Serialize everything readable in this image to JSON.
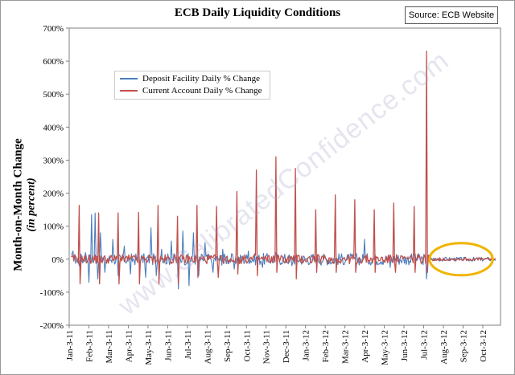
{
  "chart_data": {
    "type": "line",
    "title": "ECB Daily Liquidity Conditions",
    "source_box": "Source: ECB Website",
    "ylabel_main": "Month-on-Month Change",
    "ylabel_sub": "(in percent)",
    "xlabel": "",
    "ylim": [
      -200,
      700
    ],
    "y_ticks": [
      -200,
      -100,
      0,
      100,
      200,
      300,
      400,
      500,
      600,
      700
    ],
    "y_tick_labels": [
      "-200%",
      "-100%",
      "0%",
      "100%",
      "200%",
      "300%",
      "400%",
      "500%",
      "600%",
      "700%"
    ],
    "x_ticks": [
      "Jan-3-11",
      "Feb-3-11",
      "Mar-3-11",
      "Apr-3-11",
      "May-3-11",
      "Jun-3-11",
      "Jul-3-11",
      "Aug-3-11",
      "Sep-3-11",
      "Oct-3-11",
      "Nov-3-11",
      "Dec-3-11",
      "Jan-3-12",
      "Feb-3-12",
      "Mar-3-12",
      "Apr-3-12",
      "May-3-12",
      "Jun-3-12",
      "Jul-3-12",
      "Aug-3-12",
      "Sep-3-12",
      "Oct-3-12"
    ],
    "grid": false,
    "legend_position": "top-left",
    "watermark": "www.CalibratedConfidence.com",
    "series": [
      {
        "name": "Deposit Facility Daily % Change",
        "color": "#4a7ebb",
        "spikes": [
          {
            "x": 0.2,
            "y": 25
          },
          {
            "x": 0.5,
            "y": -20
          },
          {
            "x": 0.8,
            "y": 20
          },
          {
            "x": 1.0,
            "y": -70
          },
          {
            "x": 1.15,
            "y": 135
          },
          {
            "x": 1.3,
            "y": 140
          },
          {
            "x": 1.45,
            "y": -60
          },
          {
            "x": 1.6,
            "y": 80
          },
          {
            "x": 1.8,
            "y": -40
          },
          {
            "x": 2.2,
            "y": 60
          },
          {
            "x": 2.5,
            "y": -50
          },
          {
            "x": 2.8,
            "y": 40
          },
          {
            "x": 3.1,
            "y": -45
          },
          {
            "x": 3.5,
            "y": 45
          },
          {
            "x": 3.9,
            "y": -55
          },
          {
            "x": 4.15,
            "y": 95
          },
          {
            "x": 4.4,
            "y": -50
          },
          {
            "x": 4.7,
            "y": 30
          },
          {
            "x": 5.2,
            "y": 55
          },
          {
            "x": 5.55,
            "y": -90
          },
          {
            "x": 5.75,
            "y": 85
          },
          {
            "x": 6.1,
            "y": -80
          },
          {
            "x": 6.3,
            "y": 80
          },
          {
            "x": 6.6,
            "y": -50
          },
          {
            "x": 6.9,
            "y": 50
          },
          {
            "x": 7.3,
            "y": -40
          },
          {
            "x": 7.8,
            "y": 30
          },
          {
            "x": 8.4,
            "y": -30
          },
          {
            "x": 9.1,
            "y": 25
          },
          {
            "x": 9.8,
            "y": -25
          },
          {
            "x": 10.5,
            "y": 20
          },
          {
            "x": 11.3,
            "y": -20
          },
          {
            "x": 12.4,
            "y": 15
          },
          {
            "x": 13.3,
            "y": -15
          },
          {
            "x": 14.2,
            "y": 10
          },
          {
            "x": 15.0,
            "y": 60
          },
          {
            "x": 16.3,
            "y": -25
          },
          {
            "x": 17.5,
            "y": 15
          },
          {
            "x": 18.15,
            "y": -60
          },
          {
            "x": 19.3,
            "y": 5
          },
          {
            "x": 20.5,
            "y": -5
          }
        ]
      },
      {
        "name": "Current Account Daily % Change",
        "color": "#c0504d",
        "spikes": [
          {
            "x": 0.5,
            "y": 163
          },
          {
            "x": 0.55,
            "y": -75
          },
          {
            "x": 1.5,
            "y": 140
          },
          {
            "x": 1.55,
            "y": -75
          },
          {
            "x": 2.5,
            "y": 140
          },
          {
            "x": 2.55,
            "y": -75
          },
          {
            "x": 3.5,
            "y": 142
          },
          {
            "x": 3.55,
            "y": -75
          },
          {
            "x": 4.5,
            "y": 163
          },
          {
            "x": 4.55,
            "y": -75
          },
          {
            "x": 5.5,
            "y": 130
          },
          {
            "x": 5.55,
            "y": -75
          },
          {
            "x": 6.5,
            "y": 163
          },
          {
            "x": 6.55,
            "y": -55
          },
          {
            "x": 7.5,
            "y": 160
          },
          {
            "x": 7.55,
            "y": -55
          },
          {
            "x": 8.5,
            "y": 205
          },
          {
            "x": 8.55,
            "y": -45
          },
          {
            "x": 9.5,
            "y": 270
          },
          {
            "x": 9.55,
            "y": -50
          },
          {
            "x": 10.5,
            "y": 310
          },
          {
            "x": 10.55,
            "y": -40
          },
          {
            "x": 11.5,
            "y": 275
          },
          {
            "x": 11.55,
            "y": -60
          },
          {
            "x": 12.5,
            "y": 150
          },
          {
            "x": 12.55,
            "y": -40
          },
          {
            "x": 13.5,
            "y": 195
          },
          {
            "x": 13.55,
            "y": -40
          },
          {
            "x": 14.5,
            "y": 180
          },
          {
            "x": 14.55,
            "y": -40
          },
          {
            "x": 15.5,
            "y": 150
          },
          {
            "x": 15.55,
            "y": -40
          },
          {
            "x": 16.5,
            "y": 170
          },
          {
            "x": 16.55,
            "y": -40
          },
          {
            "x": 17.5,
            "y": 160
          },
          {
            "x": 17.55,
            "y": -40
          },
          {
            "x": 18.15,
            "y": 630
          },
          {
            "x": 18.2,
            "y": -40
          }
        ]
      }
    ],
    "annotation_ellipse": {
      "x_start": 18.3,
      "x_end": 21.5,
      "color": "#f0b400"
    }
  }
}
